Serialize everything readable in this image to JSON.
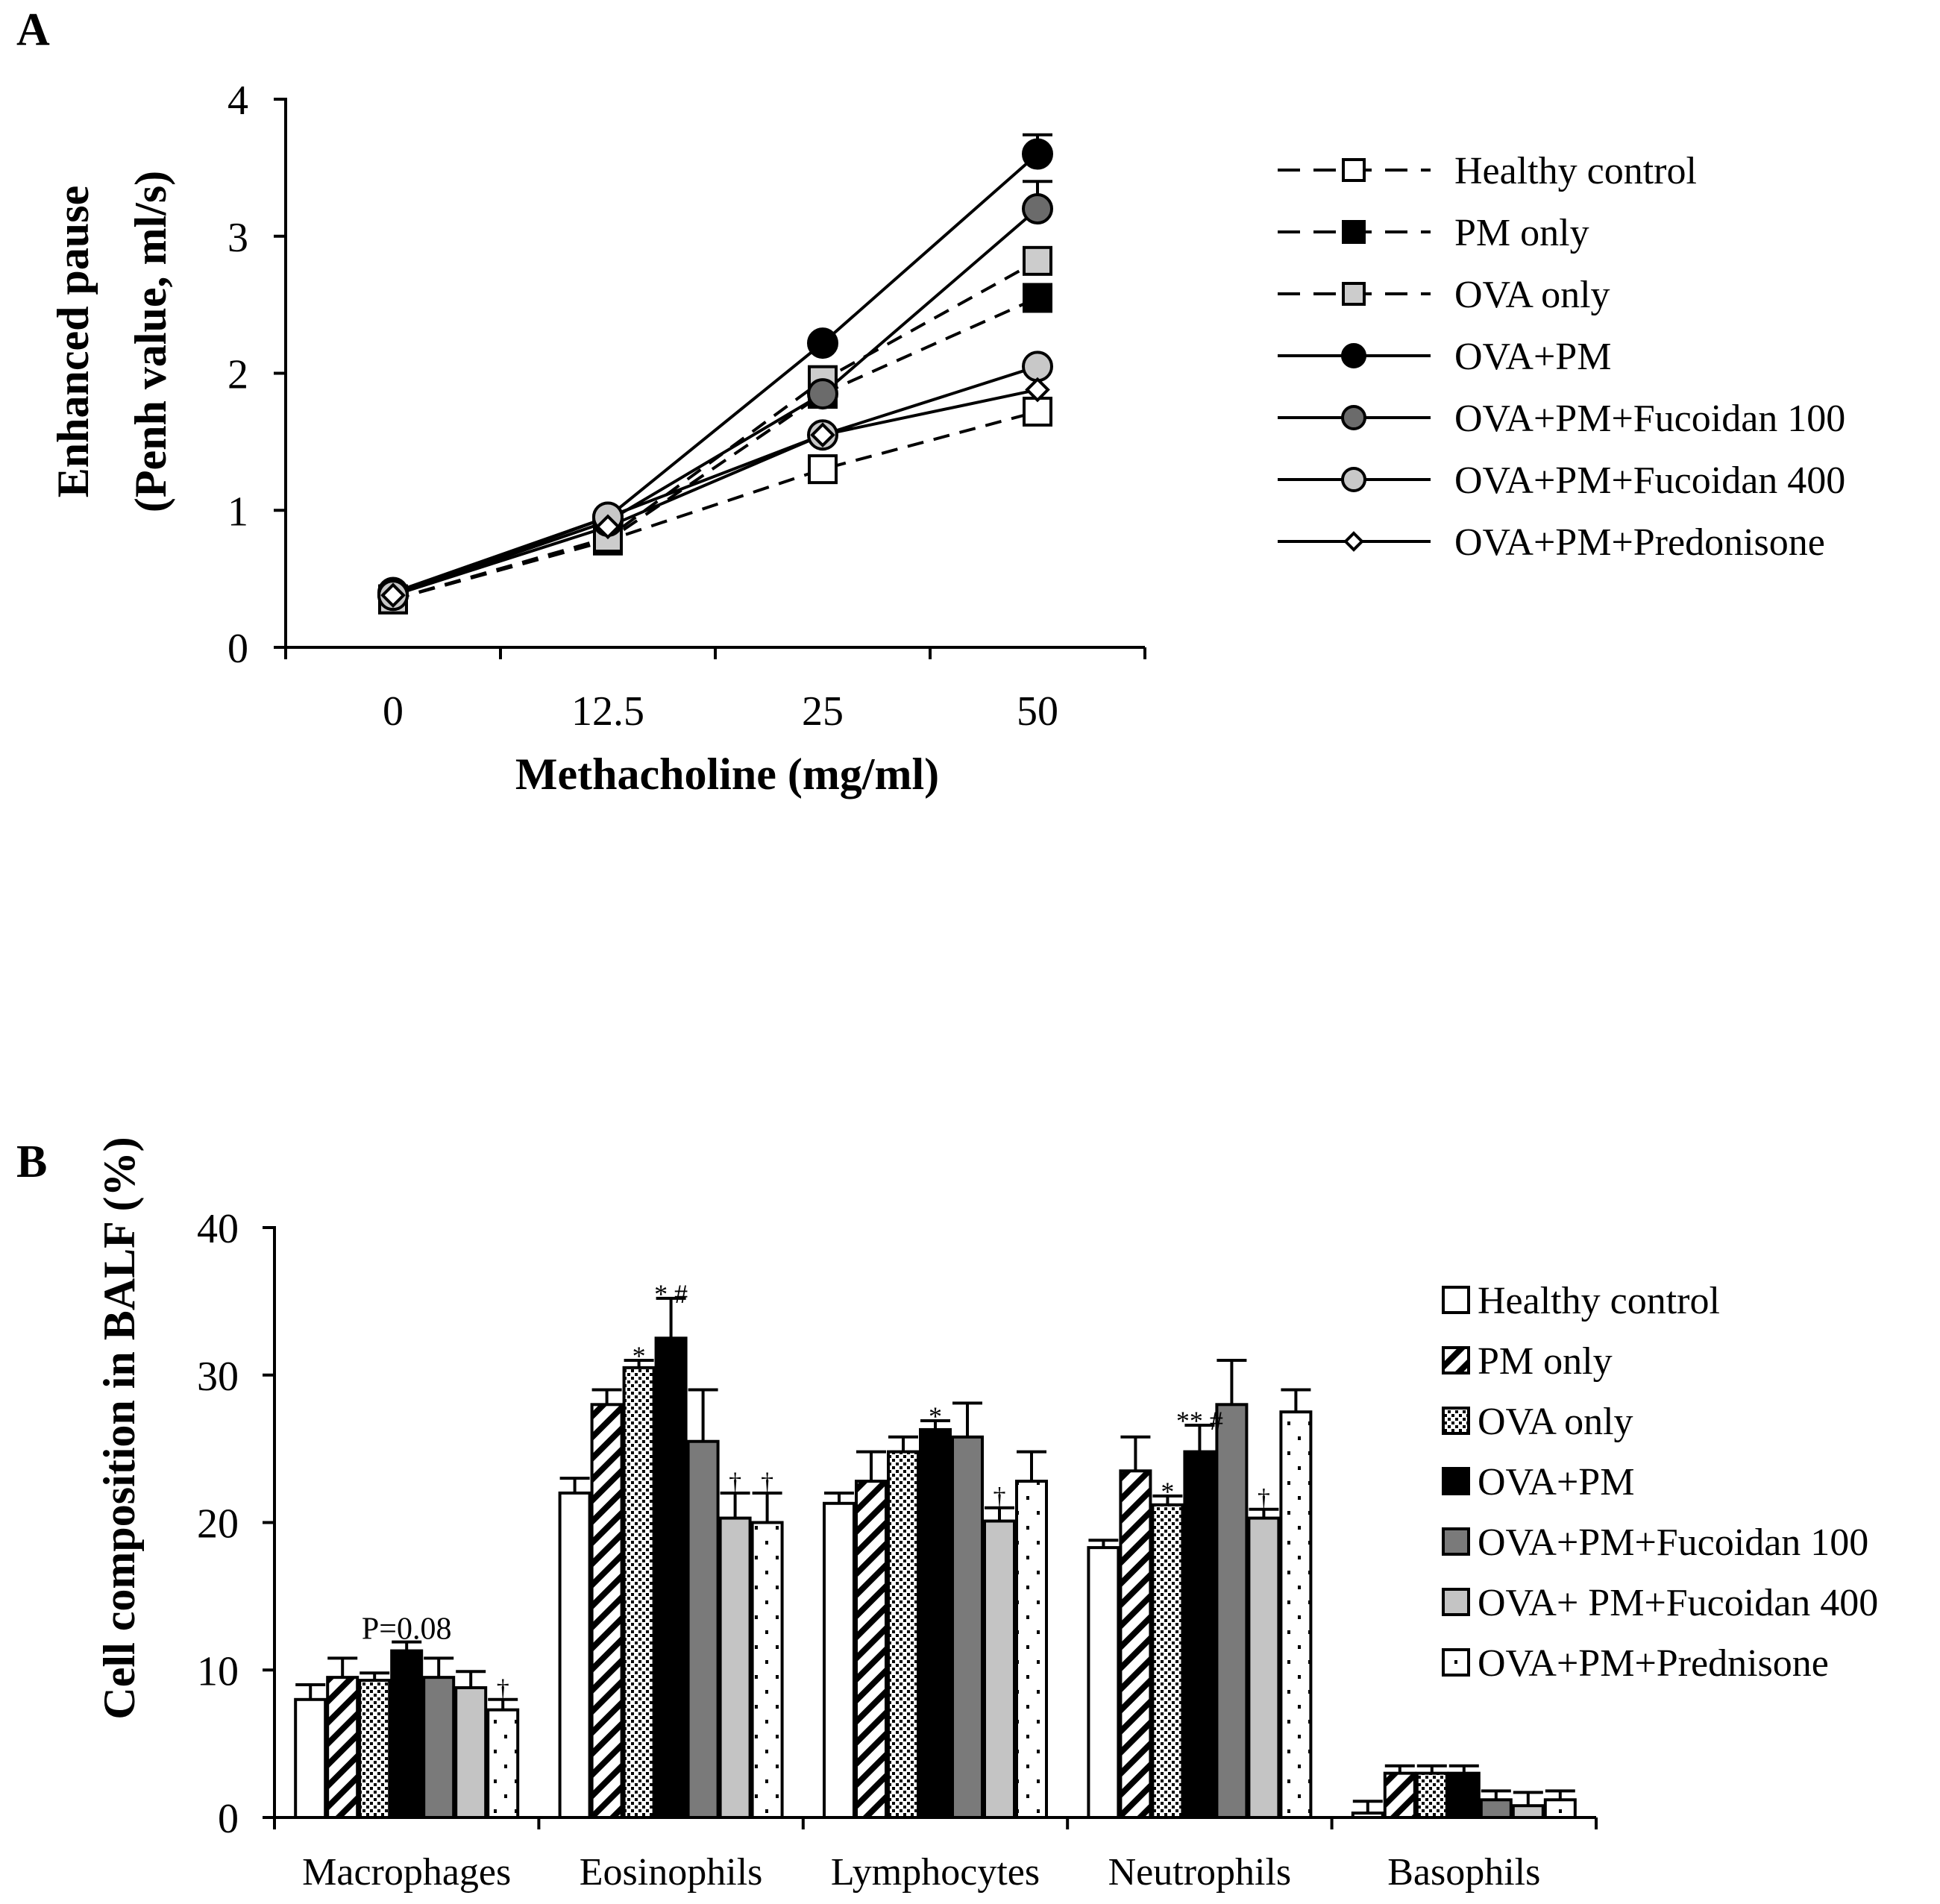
{
  "chart_data": [
    {
      "panel": "A",
      "type": "line",
      "xlabel": "Methacholine (mg/ml)",
      "ylabel_line1": "Enhanced pause",
      "ylabel_line2": "(Penh value, ml/s)",
      "x": [
        "0",
        "12.5",
        "25",
        "50"
      ],
      "ylim": [
        0,
        4
      ],
      "yticks": [
        "0",
        "1",
        "2",
        "3",
        "4"
      ],
      "series": [
        {
          "name": "Healthy control",
          "values": [
            0.35,
            0.78,
            1.3,
            1.72
          ],
          "errors": [
            0,
            0,
            0,
            0
          ],
          "line": "dashed",
          "marker": "square",
          "color": "#ffffff"
        },
        {
          "name": "PM only",
          "values": [
            0.35,
            0.78,
            1.85,
            2.55
          ],
          "errors": [
            0,
            0,
            0,
            0
          ],
          "line": "dashed",
          "marker": "square",
          "color": "#000000"
        },
        {
          "name": "OVA only",
          "values": [
            0.35,
            0.8,
            1.95,
            2.82
          ],
          "errors": [
            0,
            0,
            0,
            0
          ],
          "line": "dashed",
          "marker": "square",
          "color": "#cccccc"
        },
        {
          "name": "OVA+PM",
          "values": [
            0.4,
            0.95,
            2.22,
            3.6
          ],
          "errors": [
            0,
            0,
            0,
            0.14
          ],
          "line": "solid",
          "marker": "circle",
          "color": "#000000"
        },
        {
          "name": "OVA+PM+Fucoidan 100",
          "values": [
            0.38,
            0.92,
            1.85,
            3.2
          ],
          "errors": [
            0,
            0,
            0,
            0.2
          ],
          "line": "solid",
          "marker": "circle",
          "color": "#6b6b6b"
        },
        {
          "name": "OVA+PM+Fucoidan 400",
          "values": [
            0.38,
            0.95,
            1.55,
            2.05
          ],
          "errors": [
            0,
            0,
            0,
            0
          ],
          "line": "solid",
          "marker": "circle",
          "color": "#c8c8c8"
        },
        {
          "name": "OVA+PM+Predonisone",
          "values": [
            0.38,
            0.88,
            1.55,
            1.88
          ],
          "errors": [
            0,
            0,
            0,
            0
          ],
          "line": "solid",
          "marker": "diamond",
          "color": "#ffffff"
        }
      ]
    },
    {
      "panel": "B",
      "type": "bar",
      "ylabel": "Cell composition in BALF (%)",
      "categories": [
        "Macrophages",
        "Eosinophils",
        "Lymphocytes",
        "Neutrophils",
        "Basophils"
      ],
      "ylim": [
        0,
        40
      ],
      "yticks": [
        "0",
        "10",
        "20",
        "30",
        "40"
      ],
      "series": [
        {
          "name": "Healthy control",
          "pattern": "white",
          "values": [
            8,
            22,
            21.3,
            18.3,
            0.3
          ],
          "errors": [
            1,
            1,
            0.7,
            0.5,
            0.8
          ]
        },
        {
          "name": "PM only",
          "pattern": "diagonal",
          "values": [
            9.5,
            28,
            22.8,
            23.5,
            3
          ],
          "errors": [
            1.3,
            1,
            2,
            2.3,
            0.5
          ]
        },
        {
          "name": "OVA only",
          "pattern": "dots",
          "values": [
            9.3,
            30.5,
            24.8,
            21.2,
            3
          ],
          "errors": [
            0.5,
            0.5,
            1,
            0.6,
            0.5
          ]
        },
        {
          "name": "OVA+PM",
          "pattern": "black",
          "values": [
            11.3,
            32.5,
            26.3,
            24.8,
            3
          ],
          "errors": [
            0.6,
            2.7,
            0.6,
            1.8,
            0.5
          ]
        },
        {
          "name": "OVA+PM+Fucoidan 100",
          "pattern": "darkgray",
          "values": [
            9.5,
            25.5,
            25.8,
            28,
            1.2
          ],
          "errors": [
            1.3,
            3.5,
            2.3,
            3,
            0.6
          ]
        },
        {
          "name": "OVA+ PM+Fucoidan 400",
          "pattern": "lightgray",
          "values": [
            8.8,
            20.3,
            20.1,
            20.3,
            0.8
          ],
          "errors": [
            1.1,
            1.7,
            0.9,
            0.6,
            0.9
          ]
        },
        {
          "name": "OVA+PM+Prednisone",
          "pattern": "sparsedots",
          "values": [
            7.3,
            20,
            22.8,
            27.5,
            1.2
          ],
          "errors": [
            0.7,
            2,
            2,
            1.5,
            0.6
          ]
        }
      ],
      "annotations": [
        {
          "cat": 0,
          "series": 3,
          "text": "P=0.08",
          "size": 42
        },
        {
          "cat": 0,
          "series": 6,
          "text": "†",
          "size": 34
        },
        {
          "cat": 1,
          "series": 2,
          "text": "*",
          "size": 36
        },
        {
          "cat": 1,
          "series": 3,
          "text": "* #",
          "size": 36
        },
        {
          "cat": 1,
          "series": 5,
          "text": "†",
          "size": 34
        },
        {
          "cat": 1,
          "series": 6,
          "text": "†",
          "size": 34
        },
        {
          "cat": 2,
          "series": 3,
          "text": "*",
          "size": 36
        },
        {
          "cat": 2,
          "series": 5,
          "text": "†",
          "size": 34
        },
        {
          "cat": 3,
          "series": 2,
          "text": "*",
          "size": 36
        },
        {
          "cat": 3,
          "series": 3,
          "text": "** #",
          "size": 36
        },
        {
          "cat": 3,
          "series": 5,
          "text": "†",
          "size": 34
        }
      ]
    }
  ],
  "panel_labels": {
    "a": "A",
    "b": "B"
  }
}
